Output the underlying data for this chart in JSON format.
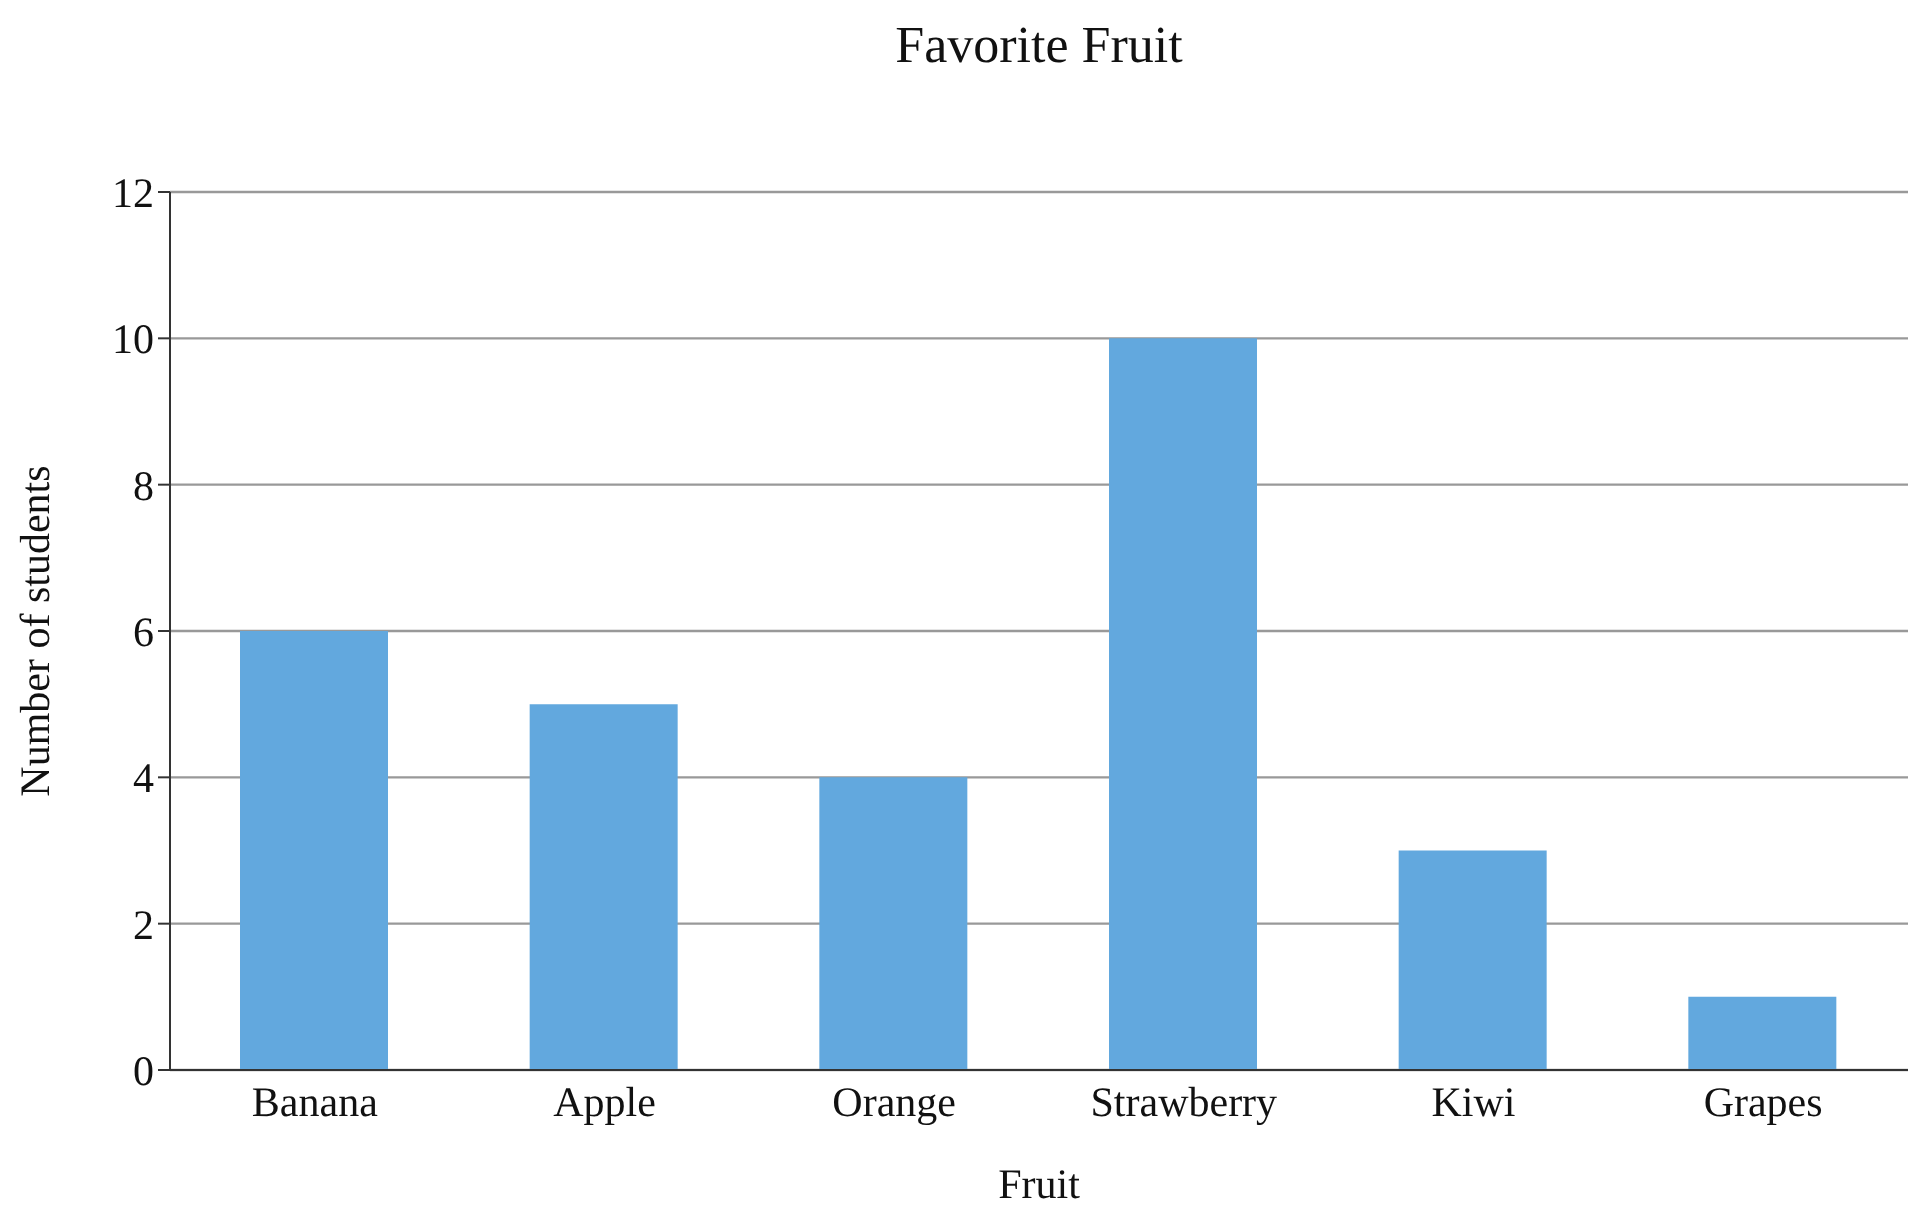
{
  "chart_data": {
    "type": "bar",
    "title": "Favorite Fruit",
    "xlabel": "Fruit",
    "ylabel": "Number of students",
    "categories": [
      "Banana",
      "Apple",
      "Orange",
      "Strawberry",
      "Kiwi",
      "Grapes"
    ],
    "values": [
      6,
      5,
      4,
      10,
      3,
      1
    ],
    "color": "#62a8de",
    "ylim": [
      0,
      12
    ],
    "yticks": [
      0,
      2,
      4,
      6,
      8,
      10,
      12
    ],
    "grid": "y"
  }
}
